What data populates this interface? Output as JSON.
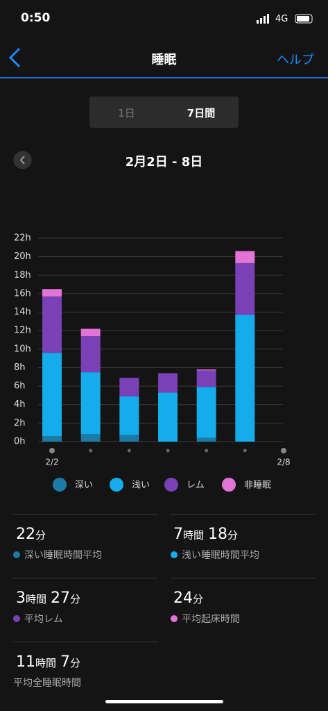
{
  "status_bar": {
    "time": "0:50",
    "network": "4G"
  },
  "nav": {
    "title": "睡眠",
    "help": "ヘルプ"
  },
  "tabs": [
    "1日",
    "7日間"
  ],
  "date_range": "2月2日 - 8日",
  "chart_data": {
    "type": "stacked_bar",
    "categories": [
      "2/2",
      null,
      null,
      null,
      null,
      null,
      "2/8"
    ],
    "series": [
      {
        "name": "深い",
        "color": "#1b7aa6",
        "values": [
          0.6,
          0.8,
          0.7,
          0,
          0.4,
          0,
          0
        ]
      },
      {
        "name": "浅い",
        "color": "#14acea",
        "values": [
          9.0,
          6.7,
          4.2,
          5.3,
          5.5,
          13.7,
          0
        ]
      },
      {
        "name": "レム",
        "color": "#7a40b6",
        "values": [
          6.1,
          3.9,
          2.0,
          2.1,
          1.8,
          5.6,
          0
        ]
      },
      {
        "name": "非睡眠",
        "color": "#e274d6",
        "values": [
          0.8,
          0.8,
          0,
          0,
          0.1,
          1.3,
          0
        ]
      }
    ],
    "ylim": [
      0,
      22
    ],
    "yticks": [
      {
        "value": 0,
        "label": "0h"
      },
      {
        "value": 2,
        "label": "2h"
      },
      {
        "value": 4,
        "label": "4h"
      },
      {
        "value": 6,
        "label": "6h"
      },
      {
        "value": 8,
        "label": "8h"
      },
      {
        "value": 10,
        "label": "10h"
      },
      {
        "value": 12,
        "label": "12h"
      },
      {
        "value": 14,
        "label": "14h"
      },
      {
        "value": 16,
        "label": "16h"
      },
      {
        "value": 18,
        "label": "18h"
      },
      {
        "value": 20,
        "label": "20h"
      },
      {
        "value": 22,
        "label": "22h"
      }
    ],
    "grid": true
  },
  "stats": [
    {
      "value": [
        "22",
        "分"
      ],
      "label": "深い睡眠時間平均",
      "color": "#1b7aa6"
    },
    {
      "value": [
        "7",
        "時間",
        "18",
        "分"
      ],
      "label": "浅い睡眠時間平均",
      "color": "#14acea"
    },
    {
      "value": [
        "3",
        "時間",
        "27",
        "分"
      ],
      "label": "平均レム",
      "color": "#7a40b6"
    },
    {
      "value": [
        "24",
        "分"
      ],
      "label": "平均起床時間",
      "color": "#e274d6"
    },
    {
      "value": [
        "11",
        "時間",
        "7",
        "分"
      ],
      "label": "平均全睡眠時間"
    }
  ]
}
